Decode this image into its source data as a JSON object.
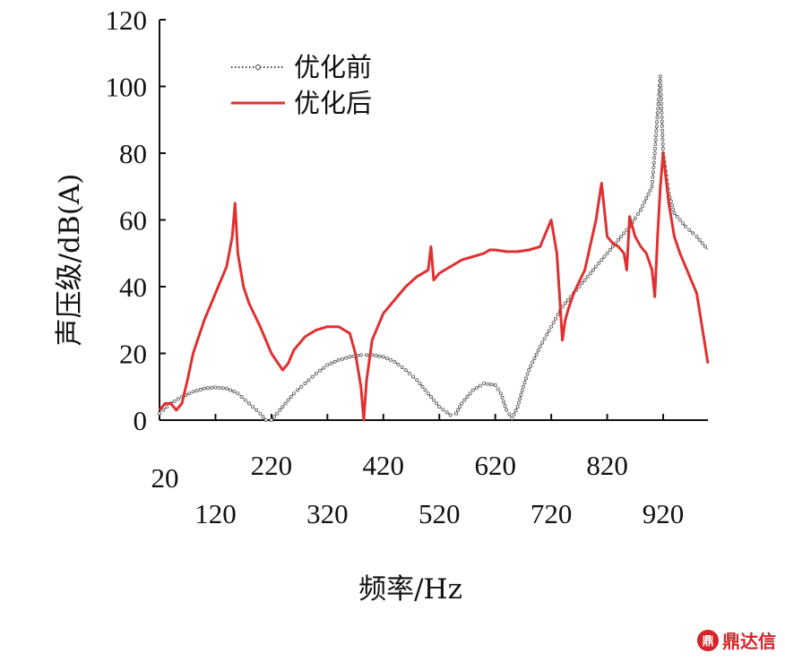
{
  "chart_data": {
    "type": "line",
    "xlabel": "频率/Hz",
    "ylabel": "声压级/dB(A)",
    "xlim": [
      20,
      1000
    ],
    "ylim": [
      0,
      120
    ],
    "y_ticks": [
      0,
      20,
      40,
      60,
      80,
      100,
      120
    ],
    "x_ticks_upper": [
      20,
      220,
      420,
      620,
      820
    ],
    "x_ticks_lower": [
      120,
      320,
      520,
      720,
      920
    ],
    "legend_position": "top-left",
    "series": [
      {
        "name": "优化前",
        "style": "dotted-markers",
        "color": "#444444",
        "x": [
          20,
          40,
          60,
          80,
          100,
          120,
          140,
          160,
          180,
          200,
          210,
          220,
          240,
          260,
          280,
          300,
          320,
          340,
          360,
          380,
          400,
          420,
          440,
          460,
          480,
          500,
          520,
          540,
          550,
          560,
          580,
          600,
          620,
          630,
          640,
          650,
          660,
          670,
          680,
          700,
          720,
          740,
          760,
          780,
          800,
          820,
          840,
          860,
          880,
          900,
          905,
          910,
          915,
          920,
          930,
          940,
          960,
          980,
          1000
        ],
        "y": [
          2,
          5,
          7,
          8.5,
          9.5,
          9.8,
          9.5,
          8,
          5,
          2,
          0,
          0,
          4,
          8,
          11,
          14,
          16.5,
          18,
          19,
          19.5,
          19.5,
          19,
          17.5,
          15,
          12,
          8,
          4,
          1.5,
          2,
          5,
          9,
          11,
          10.5,
          8,
          3,
          0.5,
          4,
          10,
          15,
          22,
          28,
          34,
          38,
          42,
          46,
          50,
          54,
          58,
          63,
          70,
          80,
          92,
          103,
          80,
          68,
          62,
          58,
          55,
          51
        ]
      },
      {
        "name": "优化后",
        "style": "solid",
        "color": "#e03030",
        "x": [
          20,
          30,
          40,
          50,
          60,
          70,
          80,
          100,
          120,
          140,
          150,
          155,
          160,
          170,
          180,
          200,
          220,
          240,
          250,
          260,
          280,
          300,
          320,
          340,
          360,
          370,
          380,
          385,
          390,
          400,
          420,
          440,
          460,
          480,
          500,
          505,
          510,
          520,
          540,
          560,
          580,
          600,
          610,
          620,
          640,
          660,
          680,
          700,
          720,
          730,
          740,
          745,
          750,
          760,
          780,
          800,
          810,
          820,
          830,
          840,
          850,
          855,
          860,
          870,
          880,
          890,
          900,
          905,
          910,
          915,
          920,
          930,
          940,
          950,
          960,
          980,
          1000
        ],
        "y": [
          3,
          5,
          5,
          3,
          5,
          12,
          20,
          30,
          38,
          46,
          55,
          65,
          50,
          40,
          35,
          28,
          20,
          15,
          17,
          21,
          25,
          27,
          28,
          28,
          26,
          20,
          10,
          0,
          12,
          24,
          32,
          36,
          40,
          43,
          45,
          52,
          42,
          44,
          46,
          48,
          49,
          50,
          51,
          51,
          50.5,
          50.5,
          51,
          52,
          60,
          50,
          24,
          30,
          33,
          38,
          45,
          60,
          71,
          55,
          53,
          52,
          50,
          45,
          61,
          55,
          52,
          50,
          45,
          37,
          55,
          70,
          80,
          65,
          55,
          50,
          46,
          38,
          17
        ]
      }
    ]
  },
  "watermark": {
    "icon": "鼎",
    "text": "鼎达信"
  }
}
